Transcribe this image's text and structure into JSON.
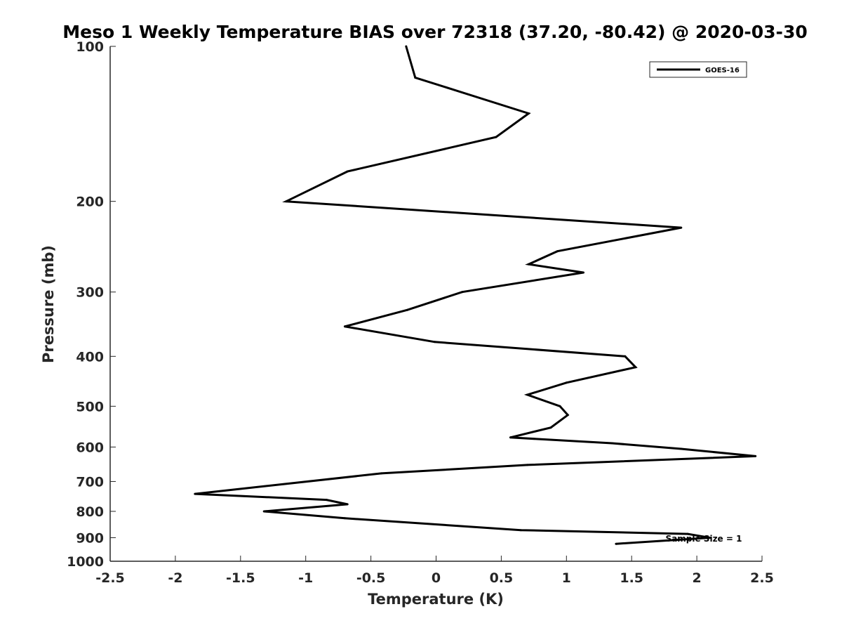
{
  "chart_data": {
    "type": "line",
    "title": "Meso 1 Weekly Temperature BIAS over 72318 (37.20, -80.42) @ 2020-03-30",
    "xlabel": "Temperature (K)",
    "ylabel": "Pressure (mb)",
    "xlim": [
      -2.5,
      2.5
    ],
    "ylim": [
      100,
      1000
    ],
    "y_scale": "log",
    "y_reversed": true,
    "x_ticks": [
      "-2.5",
      "-2",
      "-1.5",
      "-1",
      "-0.5",
      "0",
      "0.5",
      "1",
      "1.5",
      "2",
      "2.5"
    ],
    "y_ticks": [
      "100",
      "200",
      "300",
      "400",
      "500",
      "600",
      "700",
      "800",
      "900",
      "1000"
    ],
    "grid": false,
    "legend": {
      "position": "top-right",
      "entries": [
        "GOES-16"
      ]
    },
    "annotation": "Sample Size = 1",
    "line_color": "#000000",
    "series": [
      {
        "name": "GOES-16",
        "points": [
          {
            "x": -0.23,
            "p": 100
          },
          {
            "x": -0.16,
            "p": 115
          },
          {
            "x": 0.71,
            "p": 135
          },
          {
            "x": 0.46,
            "p": 150
          },
          {
            "x": -0.68,
            "p": 175
          },
          {
            "x": -1.15,
            "p": 200
          },
          {
            "x": 1.88,
            "p": 225
          },
          {
            "x": 0.93,
            "p": 250
          },
          {
            "x": 0.71,
            "p": 265
          },
          {
            "x": 1.13,
            "p": 275
          },
          {
            "x": 0.2,
            "p": 300
          },
          {
            "x": -0.22,
            "p": 325
          },
          {
            "x": -0.7,
            "p": 350
          },
          {
            "x": -0.01,
            "p": 375
          },
          {
            "x": 1.45,
            "p": 400
          },
          {
            "x": 1.53,
            "p": 420
          },
          {
            "x": 1.0,
            "p": 450
          },
          {
            "x": 0.7,
            "p": 475
          },
          {
            "x": 0.95,
            "p": 500
          },
          {
            "x": 1.01,
            "p": 520
          },
          {
            "x": 0.88,
            "p": 550
          },
          {
            "x": 0.57,
            "p": 575
          },
          {
            "x": 1.35,
            "p": 590
          },
          {
            "x": 1.88,
            "p": 605
          },
          {
            "x": 2.45,
            "p": 625
          },
          {
            "x": 0.7,
            "p": 650
          },
          {
            "x": -0.42,
            "p": 675
          },
          {
            "x": -1.85,
            "p": 740
          },
          {
            "x": -0.84,
            "p": 760
          },
          {
            "x": -0.68,
            "p": 775
          },
          {
            "x": -1.32,
            "p": 800
          },
          {
            "x": -0.7,
            "p": 825
          },
          {
            "x": 0.65,
            "p": 870
          },
          {
            "x": 1.93,
            "p": 885
          },
          {
            "x": 2.1,
            "p": 900
          },
          {
            "x": 1.38,
            "p": 925
          }
        ]
      }
    ]
  }
}
